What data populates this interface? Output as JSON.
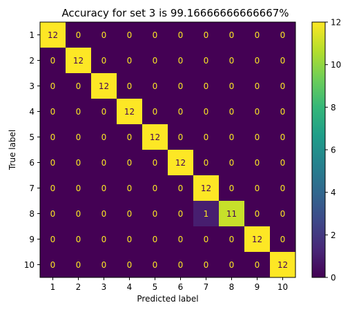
{
  "chart_data": {
    "type": "heatmap",
    "title": "Accuracy for set 3 is 99.16666666666667%",
    "xlabel": "Predicted label",
    "ylabel": "True label",
    "x_categories": [
      "1",
      "2",
      "3",
      "4",
      "5",
      "6",
      "7",
      "8",
      "9",
      "10"
    ],
    "y_categories": [
      "1",
      "2",
      "3",
      "4",
      "5",
      "6",
      "7",
      "8",
      "9",
      "10"
    ],
    "values": [
      [
        12,
        0,
        0,
        0,
        0,
        0,
        0,
        0,
        0,
        0
      ],
      [
        0,
        12,
        0,
        0,
        0,
        0,
        0,
        0,
        0,
        0
      ],
      [
        0,
        0,
        12,
        0,
        0,
        0,
        0,
        0,
        0,
        0
      ],
      [
        0,
        0,
        0,
        12,
        0,
        0,
        0,
        0,
        0,
        0
      ],
      [
        0,
        0,
        0,
        0,
        12,
        0,
        0,
        0,
        0,
        0
      ],
      [
        0,
        0,
        0,
        0,
        0,
        12,
        0,
        0,
        0,
        0
      ],
      [
        0,
        0,
        0,
        0,
        0,
        0,
        12,
        0,
        0,
        0
      ],
      [
        0,
        0,
        0,
        0,
        0,
        0,
        1,
        11,
        0,
        0
      ],
      [
        0,
        0,
        0,
        0,
        0,
        0,
        0,
        0,
        12,
        0
      ],
      [
        0,
        0,
        0,
        0,
        0,
        0,
        0,
        0,
        0,
        12
      ]
    ],
    "colormap": "viridis",
    "color_range": [
      0,
      12
    ],
    "colorbar_ticks": [
      0,
      2,
      4,
      6,
      8,
      10,
      12
    ],
    "colorbar_tick_labels": [
      "0",
      "2",
      "4",
      "6",
      "8",
      "10",
      "12"
    ],
    "text_color_on_dark": "#fde725",
    "text_color_on_light": "#440154",
    "grid": false,
    "colorbar_position": "right"
  }
}
